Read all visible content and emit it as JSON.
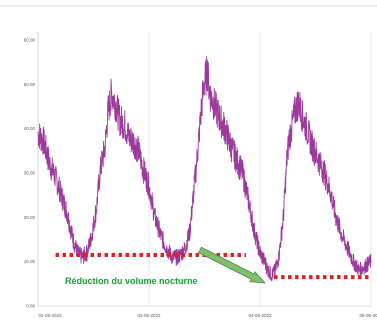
{
  "chart_data": {
    "type": "line",
    "title": "",
    "xlabel": "",
    "ylabel": "",
    "ylim": [
      0,
      60
    ],
    "grid": "vertical",
    "legend": "none",
    "yticks": [
      "0.00",
      "10.00",
      "20.00",
      "30.00",
      "40.00",
      "50.00",
      "60.00"
    ],
    "xticks": [
      "02-05-2022",
      "03-05-2022",
      "04-05-2022",
      "05-05-2022"
    ],
    "series": [
      {
        "color": "#9b3a9c",
        "points": [
          [
            0.0,
            39
          ],
          [
            0.05,
            37
          ],
          [
            0.1,
            32
          ],
          [
            0.15,
            29
          ],
          [
            0.2,
            25
          ],
          [
            0.25,
            21
          ],
          [
            0.3,
            15
          ],
          [
            0.34,
            12
          ],
          [
            0.38,
            11
          ],
          [
            0.42,
            12
          ],
          [
            0.46,
            16
          ],
          [
            0.5,
            22
          ],
          [
            0.53,
            30
          ],
          [
            0.55,
            33
          ],
          [
            0.57,
            35
          ],
          [
            0.6,
            44
          ],
          [
            0.63,
            48
          ],
          [
            0.66,
            46
          ],
          [
            0.7,
            42
          ],
          [
            0.74,
            41
          ],
          [
            0.78,
            38
          ],
          [
            0.82,
            37
          ],
          [
            0.86,
            35
          ],
          [
            0.9,
            31
          ],
          [
            0.95,
            27
          ],
          [
            1.0,
            20
          ],
          [
            1.05,
            16
          ],
          [
            1.1,
            13
          ],
          [
            1.15,
            11
          ],
          [
            1.2,
            11
          ],
          [
            1.23,
            12
          ],
          [
            1.26,
            13
          ],
          [
            1.3,
            17
          ],
          [
            1.33,
            25
          ],
          [
            1.36,
            33
          ],
          [
            1.4,
            45
          ],
          [
            1.42,
            50
          ],
          [
            1.45,
            53
          ],
          [
            1.47,
            48
          ],
          [
            1.5,
            46
          ],
          [
            1.53,
            44
          ],
          [
            1.56,
            42
          ],
          [
            1.6,
            40
          ],
          [
            1.65,
            36
          ],
          [
            1.7,
            33
          ],
          [
            1.75,
            30
          ],
          [
            1.8,
            24
          ],
          [
            1.85,
            17
          ],
          [
            1.9,
            12
          ],
          [
            1.94,
            10
          ],
          [
            1.97,
            8
          ],
          [
            2.0,
            7
          ],
          [
            2.03,
            8
          ],
          [
            2.06,
            11
          ],
          [
            2.1,
            20
          ],
          [
            2.13,
            33
          ],
          [
            2.15,
            38
          ],
          [
            2.17,
            40
          ],
          [
            2.2,
            44
          ],
          [
            2.23,
            46
          ],
          [
            2.26,
            43
          ],
          [
            2.3,
            40
          ],
          [
            2.35,
            36
          ],
          [
            2.4,
            33
          ],
          [
            2.45,
            30
          ],
          [
            2.5,
            26
          ],
          [
            2.55,
            20
          ],
          [
            2.6,
            16
          ],
          [
            2.65,
            13
          ],
          [
            2.7,
            10
          ],
          [
            2.75,
            8
          ],
          [
            2.8,
            9
          ],
          [
            2.85,
            10
          ]
        ]
      }
    ],
    "reference_lines": [
      {
        "color": "#e0201e",
        "style": "dotted",
        "y": 11.5,
        "x_from": 0.15,
        "x_to": 1.78
      },
      {
        "color": "#e0201e",
        "style": "dotted",
        "y": 6.5,
        "x_from": 2.02,
        "x_to": 2.85
      }
    ],
    "annotation": {
      "text": "Réduction du volume nocturne",
      "color": "#18a03a",
      "arrow_color": "#7fbf6a"
    }
  }
}
